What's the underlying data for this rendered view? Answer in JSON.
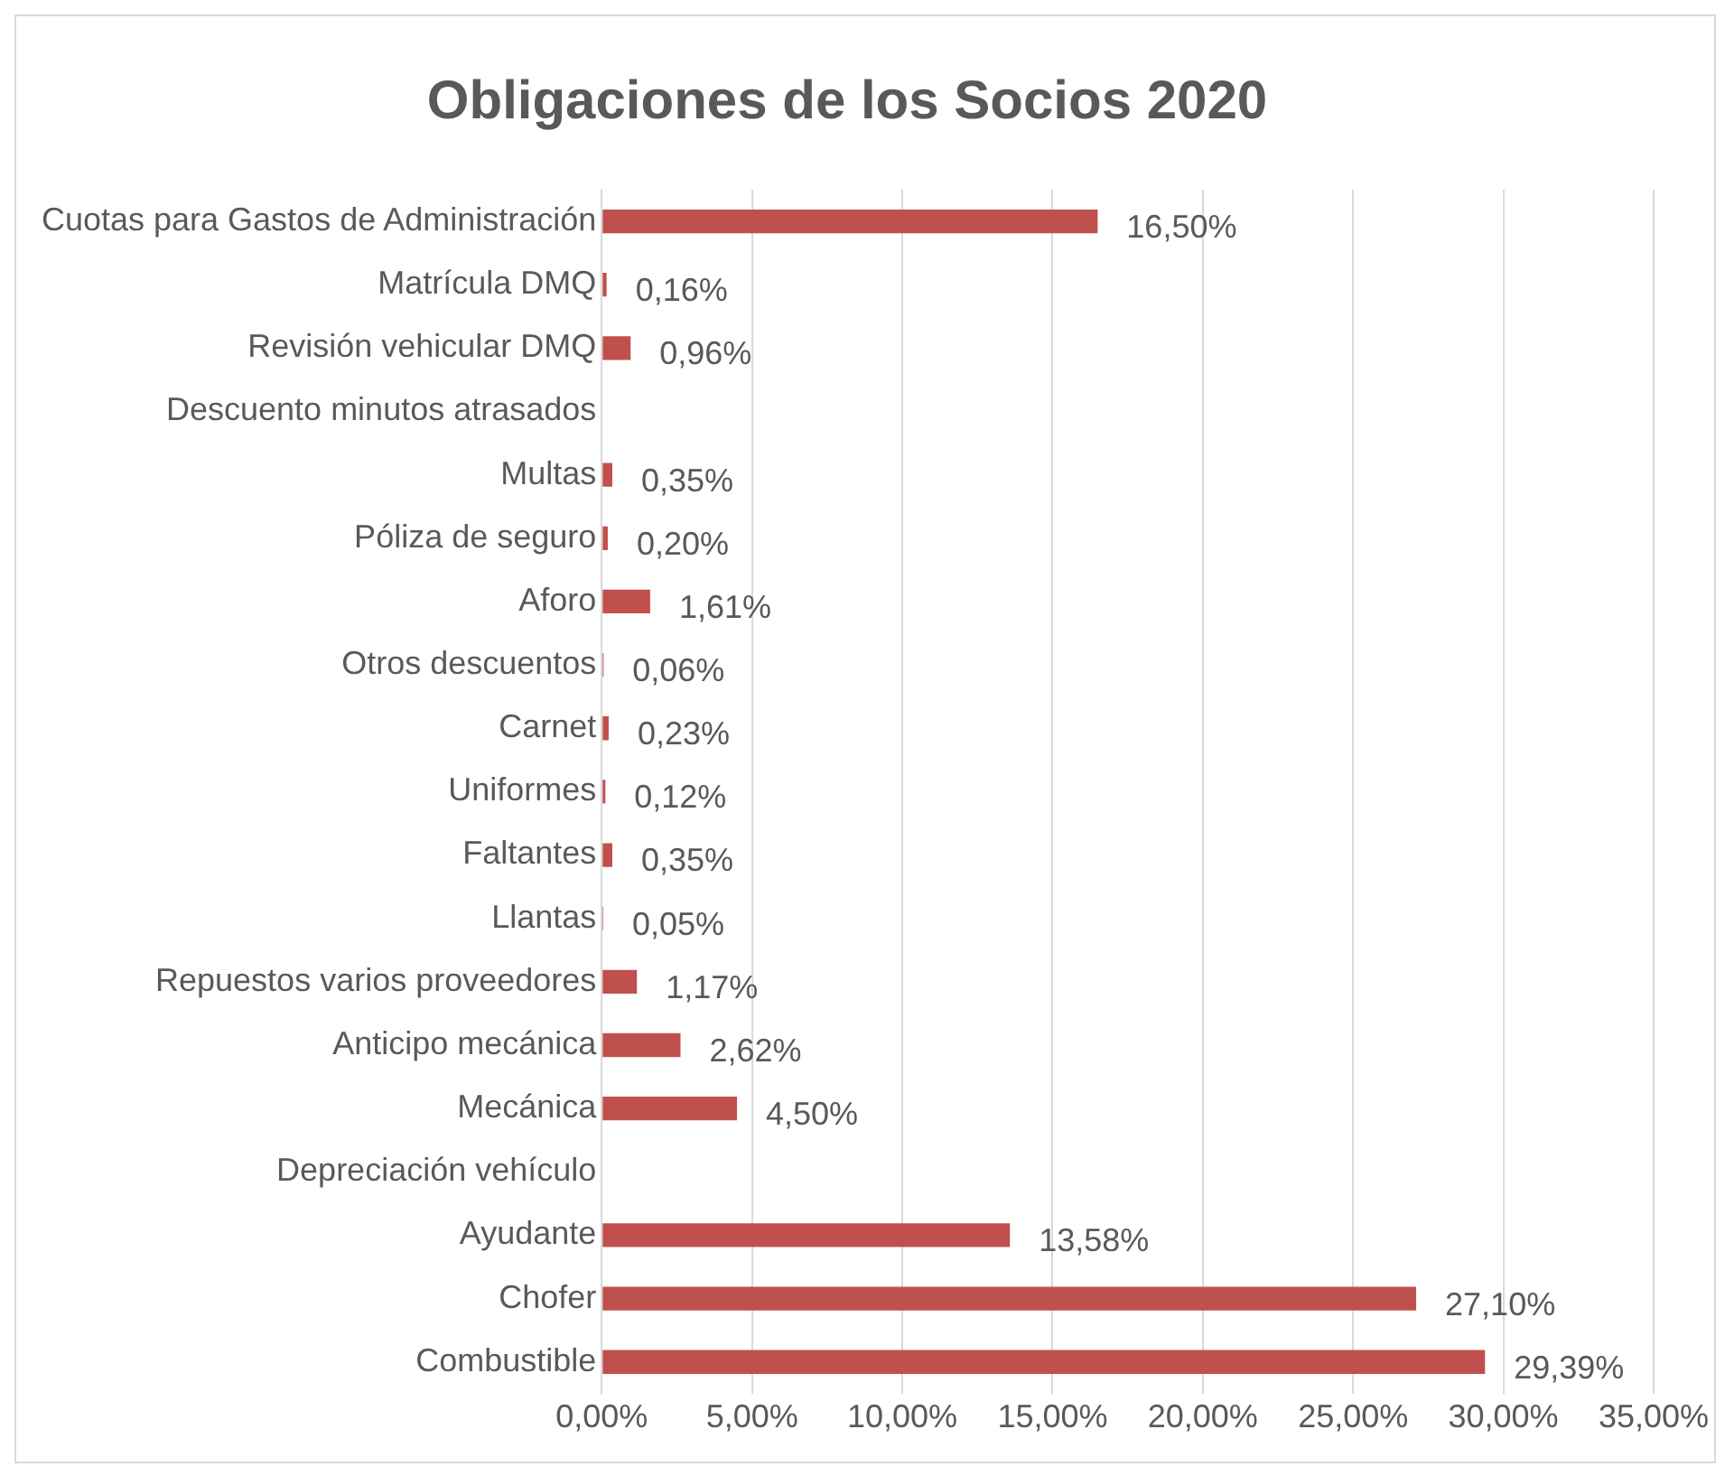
{
  "chart_data": {
    "type": "bar",
    "orientation": "horizontal",
    "title": "Obligaciones de los Socios 2020",
    "categories": [
      "Cuotas para Gastos de Administración",
      "Matrícula DMQ",
      "Revisión vehicular DMQ",
      "Descuento minutos atrasados",
      "Multas",
      "Póliza de seguro",
      "Aforo",
      "Otros descuentos",
      "Carnet",
      "Uniformes",
      "Faltantes",
      "Llantas",
      "Repuestos varios proveedores",
      "Anticipo mecánica",
      "Mecánica",
      "Depreciación vehículo",
      "Ayudante",
      "Chofer",
      "Combustible"
    ],
    "values": [
      16.5,
      0.16,
      0.96,
      null,
      0.35,
      0.2,
      1.61,
      0.06,
      0.23,
      0.12,
      0.35,
      0.05,
      1.17,
      2.62,
      4.5,
      null,
      13.58,
      27.1,
      29.39
    ],
    "value_labels": [
      "16,50%",
      "0,16%",
      "0,96%",
      null,
      "0,35%",
      "0,20%",
      "1,61%",
      "0,06%",
      "0,23%",
      "0,12%",
      "0,35%",
      "0,05%",
      "1,17%",
      "2,62%",
      "4,50%",
      null,
      "13,58%",
      "27,10%",
      "29,39%"
    ],
    "color": "#c0504d",
    "xlim": [
      0,
      35
    ],
    "xticks": [
      {
        "value": 0,
        "label": "0,00%"
      },
      {
        "value": 5,
        "label": "5,00%"
      },
      {
        "value": 10,
        "label": "10,00%"
      },
      {
        "value": 15,
        "label": "15,00%"
      },
      {
        "value": 20,
        "label": "20,00%"
      },
      {
        "value": 25,
        "label": "25,00%"
      },
      {
        "value": 30,
        "label": "30,00%"
      },
      {
        "value": 35,
        "label": "35,00%"
      }
    ],
    "grid": "x",
    "legend": false
  }
}
